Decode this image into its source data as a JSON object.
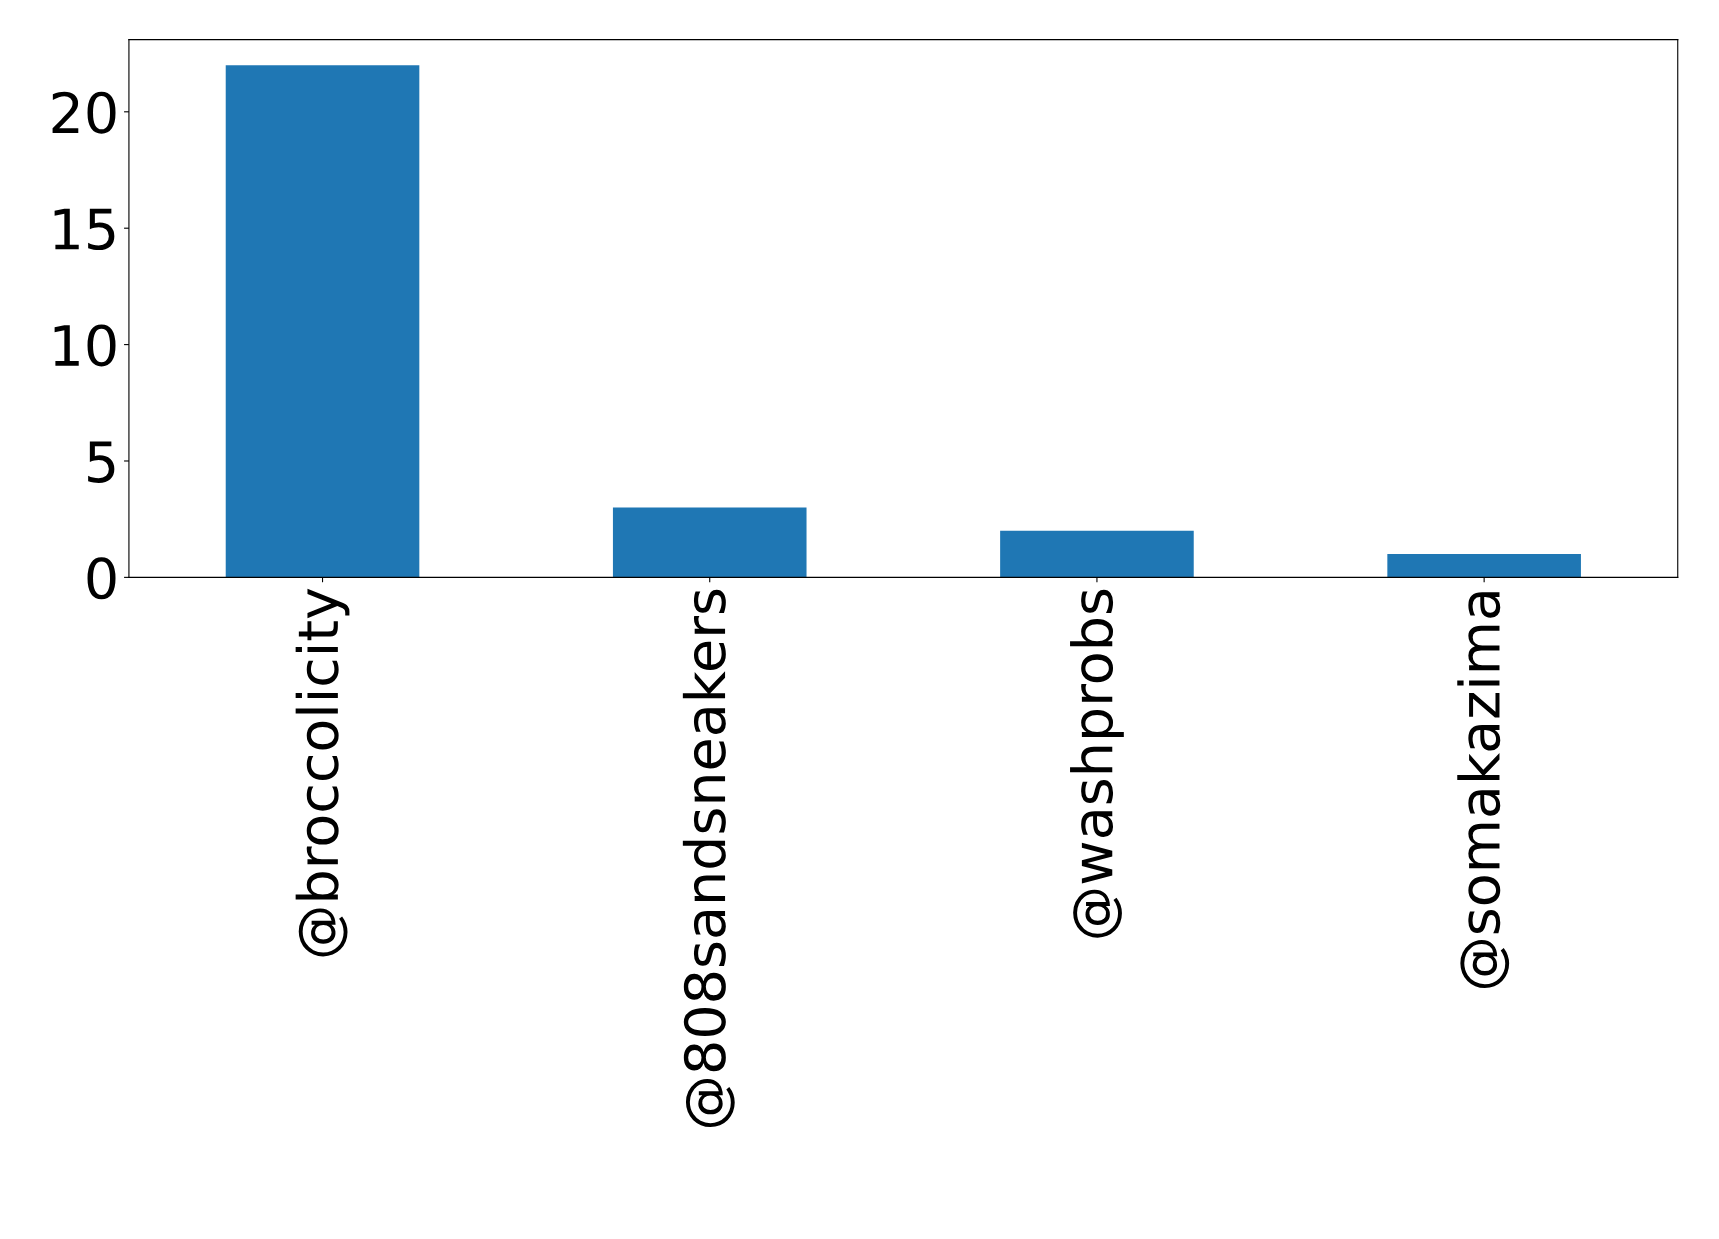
{
  "chart_data": {
    "type": "bar",
    "categories": [
      "@broccolicity",
      "@808sandsneakers",
      "@washprobs",
      "@somakazima"
    ],
    "values": [
      22,
      3,
      2,
      1
    ],
    "color": "#1f77b4",
    "ylim": [
      0,
      23.1
    ],
    "yticks": [
      0,
      5,
      10,
      15,
      20
    ],
    "grid": false,
    "legend": false
  }
}
